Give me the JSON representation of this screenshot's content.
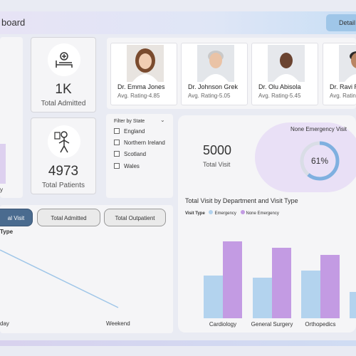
{
  "header": {
    "title": "board",
    "detail_button": "Detail"
  },
  "kpis": {
    "admitted": {
      "value": "1K",
      "label": "Total Admitted",
      "icon": "hospital-bed-icon"
    },
    "patients": {
      "value": "4973",
      "label": "Total Patients",
      "icon": "patient-icon"
    },
    "left_label": "y"
  },
  "doctors": [
    {
      "name": "Dr. Emma Jones",
      "rating": "Avg. Rating-4.85"
    },
    {
      "name": "Dr. Johnson Grek",
      "rating": "Avg. Rating-5.05"
    },
    {
      "name": "Dr. Olu Abisola",
      "rating": "Avg. Rating-5.45"
    },
    {
      "name": "Dr. Ravi R",
      "rating": "Avg. Rating-"
    }
  ],
  "filter": {
    "title": "Filter by State",
    "states": [
      "England",
      "Northern Ireland",
      "Scotland",
      "Wales"
    ]
  },
  "visits": {
    "total_value": "5000",
    "total_label": "Total Visit",
    "non_emergency_title": "None Emergency Visit",
    "non_emergency_pct": "61%",
    "non_emergency_fraction": 0.61
  },
  "tabs": [
    "al Visit",
    "Total Admitted",
    "Total Outpatient"
  ],
  "line_chart": {
    "partial_title": "Type",
    "x_labels": [
      "day",
      "Weekend"
    ]
  },
  "colors": {
    "emergency": "#b3d3ee",
    "none_emergency": "#c39be3",
    "active_tab": "#4a6b8f",
    "gauge": "#7fb0e0"
  },
  "chart_data": {
    "type": "bar",
    "title": "Total Visit by Department and Visit Type",
    "legend_title": "Visit Type",
    "categories": [
      "Cardiology",
      "General Surgery",
      "Orthopedics",
      ""
    ],
    "series": [
      {
        "name": "Emergency",
        "values": [
          300,
          285,
          335,
          185
        ]
      },
      {
        "name": "None Emergency",
        "values": [
          540,
          495,
          445,
          null
        ]
      }
    ],
    "ylim": [
      0,
      600
    ]
  }
}
